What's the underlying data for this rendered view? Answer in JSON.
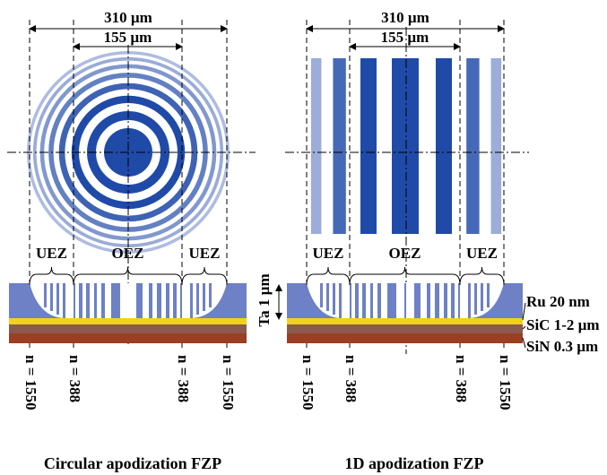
{
  "panels": [
    {
      "caption": "Circular apodization FZP",
      "outer_width": "310 µm",
      "inner_width": "155 µm",
      "zones": [
        "UEZ",
        "OEZ",
        "UEZ"
      ],
      "n_labels": [
        "n = 1550",
        "n = 388",
        "n = 388",
        "n = 1550"
      ]
    },
    {
      "caption": "1D apodization FZP",
      "outer_width": "310 µm",
      "inner_width": "155 µm",
      "zones": [
        "UEZ",
        "OEZ",
        "UEZ"
      ],
      "n_labels": [
        "n = 1550",
        "n = 388",
        "n = 388",
        "n = 1550"
      ]
    }
  ],
  "layers": {
    "absorber": "Ta 1 µm",
    "ru": "Ru 20 nm",
    "sic": "SiC 1-2 µm",
    "sin": "SiN 0.3 µm"
  }
}
